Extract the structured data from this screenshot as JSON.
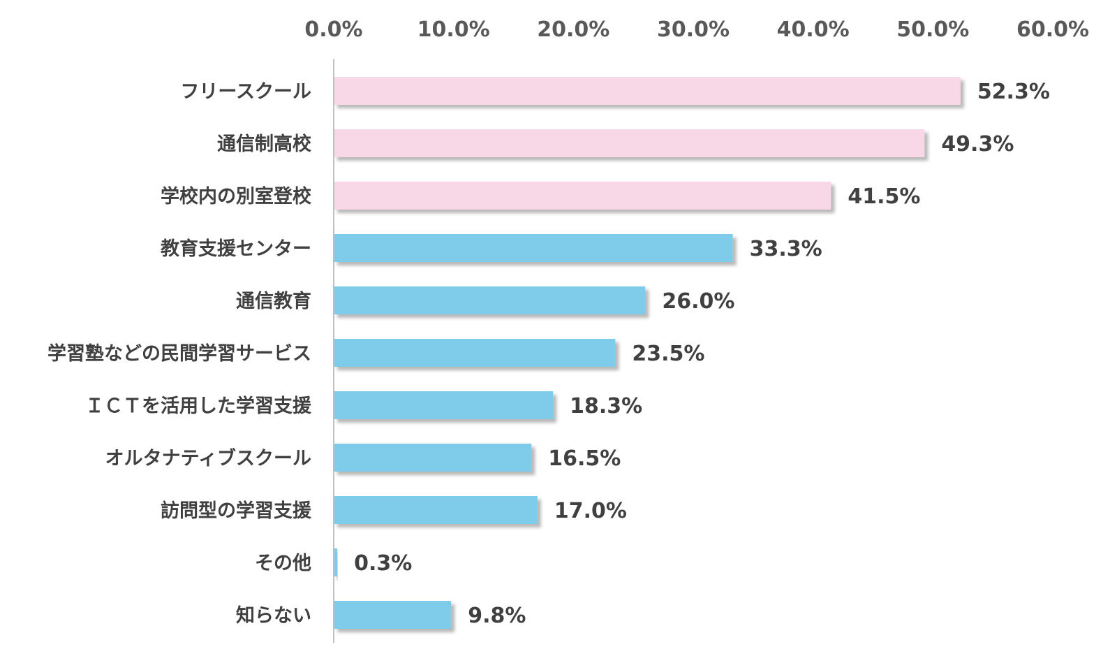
{
  "chart_data": {
    "type": "bar",
    "orientation": "horizontal",
    "categories": [
      "フリースクール",
      "通信制高校",
      "学校内の別室登校",
      "教育支援センター",
      "通信教育",
      "学習塾などの民間学習サービス",
      "ＩＣＴを活用した学習支援",
      "オルタナティブスクール",
      "訪問型の学習支援",
      "その他",
      "知らない"
    ],
    "values": [
      52.3,
      49.3,
      41.5,
      33.3,
      26.0,
      23.5,
      18.3,
      16.5,
      17.0,
      0.3,
      9.8
    ],
    "value_labels": [
      "52.3%",
      "49.3%",
      "41.5%",
      "33.3%",
      "26.0%",
      "23.5%",
      "18.3%",
      "16.5%",
      "17.0%",
      "0.3%",
      "9.8%"
    ],
    "bar_colors": [
      "#f8d7e6",
      "#f8d7e6",
      "#f8d7e6",
      "#7ecbea",
      "#7ecbea",
      "#7ecbea",
      "#7ecbea",
      "#7ecbea",
      "#7ecbea",
      "#7ecbea",
      "#7ecbea"
    ],
    "x_ticks": [
      0,
      10,
      20,
      30,
      40,
      50,
      60
    ],
    "x_tick_labels": [
      "0.0%",
      "10.0%",
      "20.0%",
      "30.0%",
      "40.0%",
      "50.0%",
      "60.0%"
    ],
    "xlim": [
      0,
      60
    ],
    "x_axis_position": "top",
    "grid": false,
    "legend": "none",
    "title": "",
    "xlabel": "",
    "ylabel": ""
  }
}
